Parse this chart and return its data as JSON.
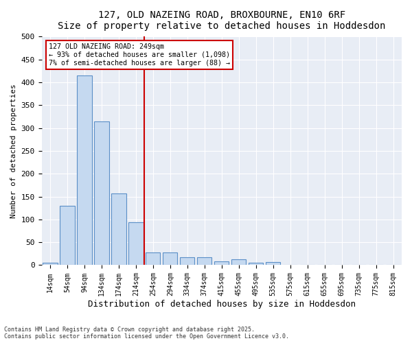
{
  "title1": "127, OLD NAZEING ROAD, BROXBOURNE, EN10 6RF",
  "title2": "Size of property relative to detached houses in Hoddesdon",
  "xlabel": "Distribution of detached houses by size in Hoddesdon",
  "ylabel": "Number of detached properties",
  "bar_color": "#c5d9f0",
  "bar_edge_color": "#5a8fc7",
  "background_color": "#e8edf5",
  "categories": [
    "14sqm",
    "54sqm",
    "94sqm",
    "134sqm",
    "174sqm",
    "214sqm",
    "254sqm",
    "294sqm",
    "334sqm",
    "374sqm",
    "415sqm",
    "455sqm",
    "495sqm",
    "535sqm",
    "575sqm",
    "615sqm",
    "655sqm",
    "695sqm",
    "735sqm",
    "775sqm",
    "815sqm"
  ],
  "values": [
    5,
    130,
    415,
    315,
    157,
    94,
    28,
    28,
    17,
    17,
    8,
    12,
    5,
    6,
    1,
    1,
    0,
    0,
    0,
    0,
    0
  ],
  "vline_x": 5.5,
  "vline_color": "#cc0000",
  "annotation_text": "127 OLD NAZEING ROAD: 249sqm\n← 93% of detached houses are smaller (1,098)\n7% of semi-detached houses are larger (88) →",
  "annotation_box_color": "#ffffff",
  "annotation_box_edge": "#cc0000",
  "footnote": "Contains HM Land Registry data © Crown copyright and database right 2025.\nContains public sector information licensed under the Open Government Licence v3.0.",
  "ylim": [
    0,
    500
  ],
  "yticks": [
    0,
    50,
    100,
    150,
    200,
    250,
    300,
    350,
    400,
    450,
    500
  ]
}
